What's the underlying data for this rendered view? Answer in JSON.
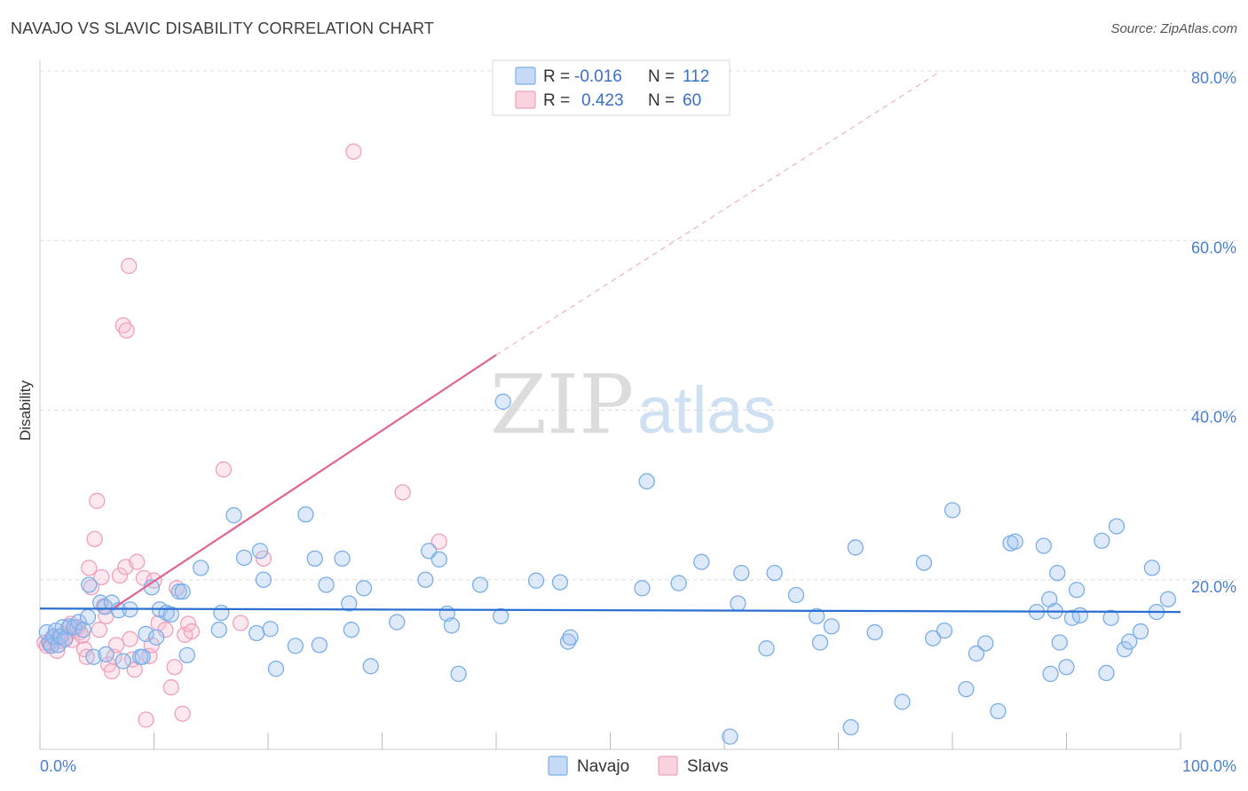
{
  "title": "NAVAJO VS SLAVIC DISABILITY CORRELATION CHART",
  "source": "Source: ZipAtlas.com",
  "watermark": {
    "zip": "ZIP",
    "atlas": "atlas"
  },
  "colors": {
    "navajo": "#7aaee8",
    "navajo_line": "#2a6fd1",
    "slavs": "#f0a0b8",
    "slavs_line": "#e0668f",
    "tick": "#4a7fd0"
  },
  "legend": {
    "rows": [
      {
        "r_label": "R =",
        "r_value": "-0.016",
        "n_label": "N =",
        "n_value": "112"
      },
      {
        "r_label": "R =",
        "r_value": "0.423",
        "n_label": "N =",
        "n_value": "60"
      }
    ]
  },
  "chart_data": {
    "type": "scatter",
    "title": "NAVAJO VS SLAVIC DISABILITY CORRELATION CHART",
    "xlabel": "",
    "ylabel": "Disability",
    "xlim": [
      0,
      100
    ],
    "ylim": [
      0,
      80
    ],
    "x_tick_labels": [
      "0.0%",
      "100.0%"
    ],
    "y_ticks": [
      20,
      40,
      60,
      80
    ],
    "y_tick_labels": [
      "20.0%",
      "40.0%",
      "60.0%",
      "80.0%"
    ],
    "series": [
      {
        "name": "Navajo",
        "r": -0.016,
        "n": 112,
        "trend": {
          "x0": 0,
          "y0": 16.6,
          "x1": 100,
          "y1": 16.2
        },
        "points": [
          [
            0.6,
            13.8
          ],
          [
            0.8,
            12.6
          ],
          [
            1.0,
            12.2
          ],
          [
            1.2,
            13.3
          ],
          [
            1.4,
            14.0
          ],
          [
            1.6,
            12.3
          ],
          [
            1.8,
            13.3
          ],
          [
            2.0,
            14.4
          ],
          [
            2.2,
            13.0
          ],
          [
            2.6,
            14.5
          ],
          [
            3.0,
            14.4
          ],
          [
            3.4,
            15.0
          ],
          [
            3.8,
            14.1
          ],
          [
            4.2,
            15.6
          ],
          [
            4.3,
            19.4
          ],
          [
            4.7,
            10.9
          ],
          [
            5.3,
            17.3
          ],
          [
            5.7,
            16.8
          ],
          [
            5.8,
            11.2
          ],
          [
            6.3,
            17.3
          ],
          [
            6.9,
            16.4
          ],
          [
            7.3,
            10.4
          ],
          [
            7.9,
            16.5
          ],
          [
            8.8,
            10.9
          ],
          [
            9.0,
            10.9
          ],
          [
            9.3,
            13.6
          ],
          [
            9.8,
            19.1
          ],
          [
            10.2,
            13.2
          ],
          [
            10.5,
            16.5
          ],
          [
            11.1,
            16.1
          ],
          [
            11.5,
            15.9
          ],
          [
            12.2,
            18.6
          ],
          [
            12.5,
            18.6
          ],
          [
            12.9,
            11.1
          ],
          [
            14.1,
            21.4
          ],
          [
            15.7,
            14.1
          ],
          [
            15.9,
            16.1
          ],
          [
            17.0,
            27.6
          ],
          [
            17.9,
            22.6
          ],
          [
            19.0,
            13.7
          ],
          [
            19.3,
            23.4
          ],
          [
            19.6,
            20.0
          ],
          [
            20.2,
            14.2
          ],
          [
            20.7,
            9.5
          ],
          [
            22.4,
            12.2
          ],
          [
            23.3,
            27.7
          ],
          [
            24.1,
            22.5
          ],
          [
            24.5,
            12.3
          ],
          [
            25.1,
            19.4
          ],
          [
            26.5,
            22.5
          ],
          [
            27.1,
            17.2
          ],
          [
            27.3,
            14.1
          ],
          [
            28.4,
            19.0
          ],
          [
            29.0,
            9.8
          ],
          [
            31.3,
            15.0
          ],
          [
            33.8,
            20.0
          ],
          [
            34.1,
            23.4
          ],
          [
            35.0,
            22.4
          ],
          [
            35.7,
            16.0
          ],
          [
            36.1,
            14.6
          ],
          [
            36.7,
            8.9
          ],
          [
            38.6,
            19.4
          ],
          [
            40.4,
            15.7
          ],
          [
            40.6,
            41.0
          ],
          [
            43.5,
            19.9
          ],
          [
            45.6,
            19.7
          ],
          [
            46.3,
            12.7
          ],
          [
            46.5,
            13.2
          ],
          [
            52.8,
            19.0
          ],
          [
            53.2,
            31.6
          ],
          [
            56.0,
            19.6
          ],
          [
            58.0,
            22.1
          ],
          [
            60.5,
            1.5
          ],
          [
            61.2,
            17.2
          ],
          [
            61.5,
            20.8
          ],
          [
            63.7,
            11.9
          ],
          [
            64.4,
            20.8
          ],
          [
            66.3,
            18.2
          ],
          [
            68.1,
            15.7
          ],
          [
            68.4,
            12.6
          ],
          [
            69.4,
            14.5
          ],
          [
            71.1,
            2.6
          ],
          [
            71.5,
            23.8
          ],
          [
            73.2,
            13.8
          ],
          [
            75.6,
            5.6
          ],
          [
            77.5,
            22.0
          ],
          [
            78.3,
            13.1
          ],
          [
            79.3,
            14.0
          ],
          [
            80.0,
            28.2
          ],
          [
            81.2,
            7.1
          ],
          [
            82.1,
            11.3
          ],
          [
            82.9,
            12.5
          ],
          [
            84.0,
            4.5
          ],
          [
            85.1,
            24.3
          ],
          [
            85.5,
            24.5
          ],
          [
            87.4,
            16.2
          ],
          [
            88.0,
            24.0
          ],
          [
            88.5,
            17.7
          ],
          [
            88.6,
            8.9
          ],
          [
            89.0,
            16.3
          ],
          [
            89.2,
            20.8
          ],
          [
            89.4,
            12.6
          ],
          [
            90.0,
            9.7
          ],
          [
            90.5,
            15.5
          ],
          [
            90.9,
            18.8
          ],
          [
            91.2,
            15.8
          ],
          [
            93.1,
            24.6
          ],
          [
            93.5,
            9.0
          ],
          [
            93.9,
            15.5
          ],
          [
            94.4,
            26.3
          ],
          [
            95.1,
            11.8
          ],
          [
            95.5,
            12.7
          ],
          [
            96.5,
            13.9
          ],
          [
            97.5,
            21.4
          ],
          [
            97.9,
            16.2
          ],
          [
            98.9,
            17.7
          ]
        ]
      },
      {
        "name": "Slavs",
        "r": 0.423,
        "n": 60,
        "trend": {
          "x0": 6.5,
          "y0": 16.7,
          "x1": 40.0,
          "y1": 46.5,
          "x2": 79.0,
          "y2": 80.0
        },
        "points": [
          [
            0.4,
            12.6
          ],
          [
            0.6,
            12.2
          ],
          [
            0.9,
            12.4
          ],
          [
            1.1,
            13.1
          ],
          [
            1.3,
            13.1
          ],
          [
            1.5,
            11.6
          ],
          [
            1.7,
            13.3
          ],
          [
            1.9,
            12.8
          ],
          [
            2.1,
            13.6
          ],
          [
            2.3,
            13.3
          ],
          [
            2.5,
            14.3
          ],
          [
            2.7,
            14.8
          ],
          [
            2.8,
            12.9
          ],
          [
            3.1,
            14.1
          ],
          [
            3.3,
            14.4
          ],
          [
            3.5,
            13.8
          ],
          [
            3.7,
            13.4
          ],
          [
            3.9,
            11.8
          ],
          [
            4.1,
            10.9
          ],
          [
            4.3,
            21.4
          ],
          [
            4.5,
            19.1
          ],
          [
            4.8,
            24.8
          ],
          [
            5.0,
            29.3
          ],
          [
            5.2,
            14.1
          ],
          [
            5.4,
            20.3
          ],
          [
            5.6,
            16.9
          ],
          [
            5.8,
            15.7
          ],
          [
            6.0,
            10.0
          ],
          [
            6.3,
            9.2
          ],
          [
            6.5,
            10.9
          ],
          [
            6.7,
            12.3
          ],
          [
            7.0,
            20.5
          ],
          [
            7.3,
            50.0
          ],
          [
            7.5,
            21.5
          ],
          [
            7.6,
            49.4
          ],
          [
            7.8,
            57.0
          ],
          [
            7.9,
            13.0
          ],
          [
            8.1,
            10.6
          ],
          [
            8.3,
            9.4
          ],
          [
            8.5,
            22.1
          ],
          [
            9.1,
            20.2
          ],
          [
            9.3,
            3.5
          ],
          [
            9.6,
            11.0
          ],
          [
            9.8,
            12.3
          ],
          [
            10.0,
            19.9
          ],
          [
            10.4,
            14.9
          ],
          [
            11.0,
            14.1
          ],
          [
            11.5,
            7.3
          ],
          [
            11.8,
            9.7
          ],
          [
            12.0,
            19.0
          ],
          [
            12.5,
            4.2
          ],
          [
            12.7,
            13.5
          ],
          [
            13.0,
            14.8
          ],
          [
            13.3,
            13.9
          ],
          [
            16.1,
            33.0
          ],
          [
            17.6,
            14.9
          ],
          [
            19.6,
            22.5
          ],
          [
            27.5,
            70.5
          ],
          [
            31.8,
            30.3
          ],
          [
            35.0,
            24.5
          ]
        ]
      }
    ],
    "legend_entries": [
      "Navajo",
      "Slavs"
    ]
  }
}
